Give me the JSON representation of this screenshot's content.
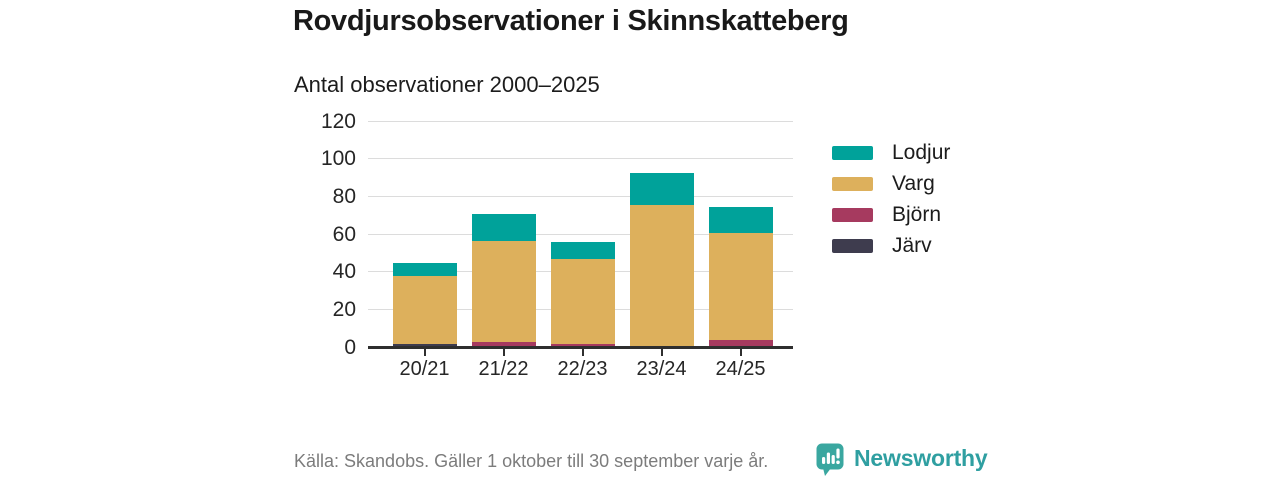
{
  "title": "Rovdjursobservationer i Skinnskatteberg",
  "subtitle": "Antal observationer 2000–2025",
  "footer": {
    "source": "Källa: Skandobs. Gäller 1 oktober till 30 september varje år.",
    "brand": "Newsworthy"
  },
  "colors": {
    "lodjur": "#00a29a",
    "varg": "#ddb05c",
    "bjorn": "#a63a5f",
    "jarv": "#3e3c4e",
    "grid": "#dcdcdc",
    "axis": "#2f2f2f",
    "text": "#1c1c1c",
    "muted_text": "#7c7c7c",
    "brand_teal": "#3aa7a0"
  },
  "chart_data": {
    "type": "bar",
    "stacked": true,
    "title": "Rovdjursobservationer i Skinnskatteberg",
    "subtitle": "Antal observationer 2000–2025",
    "categories": [
      "20/21",
      "21/22",
      "22/23",
      "23/24",
      "24/25"
    ],
    "series": [
      {
        "name": "Lodjur",
        "color": "#00a29a",
        "values": [
          7,
          14,
          9,
          17,
          14
        ]
      },
      {
        "name": "Varg",
        "color": "#ddb05c",
        "values": [
          36,
          54,
          45,
          75,
          57
        ]
      },
      {
        "name": "Björn",
        "color": "#a63a5f",
        "values": [
          0,
          2,
          1,
          0,
          3
        ]
      },
      {
        "name": "Järv",
        "color": "#3e3c4e",
        "values": [
          1,
          0,
          0,
          0,
          0
        ]
      }
    ],
    "stack_order_bottom_to_top": [
      "Järv",
      "Björn",
      "Varg",
      "Lodjur"
    ],
    "totals": [
      44,
      70,
      55,
      92,
      74
    ],
    "ylim": [
      0,
      120
    ],
    "yticks": [
      0,
      20,
      40,
      60,
      80,
      100,
      120
    ],
    "xlabel": "",
    "ylabel": "",
    "grid": true,
    "legend_position": "right"
  }
}
